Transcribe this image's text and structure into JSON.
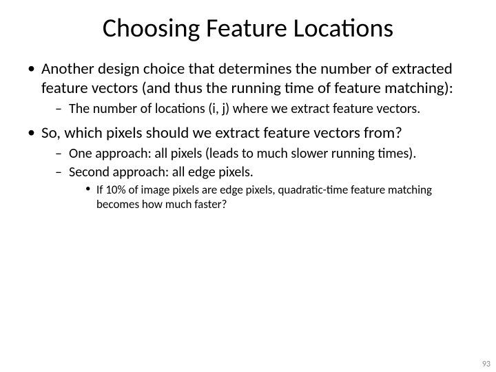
{
  "title": "Choosing Feature Locations",
  "bullets": {
    "b1": "Another design choice that determines the number of extracted feature vectors (and thus the running time of feature matching):",
    "b1_1": "The number of locations (i, j) where we extract feature vectors.",
    "b2": "So, which pixels should we extract feature vectors from?",
    "b2_1": "One approach: all pixels (leads to much slower running times).",
    "b2_2": "Second approach: all edge pixels.",
    "b2_2_1": "If 10% of image pixels are edge pixels, quadratic-time feature matching becomes how much faster?"
  },
  "page_number": "93",
  "style": {
    "background_color": "#ffffff",
    "text_color": "#000000",
    "pagenum_color": "#8a8a8a",
    "title_fontsize": 38,
    "lvl1_fontsize": 23,
    "lvl2_fontsize": 20,
    "lvl3_fontsize": 17,
    "font_family": "Calibri"
  }
}
